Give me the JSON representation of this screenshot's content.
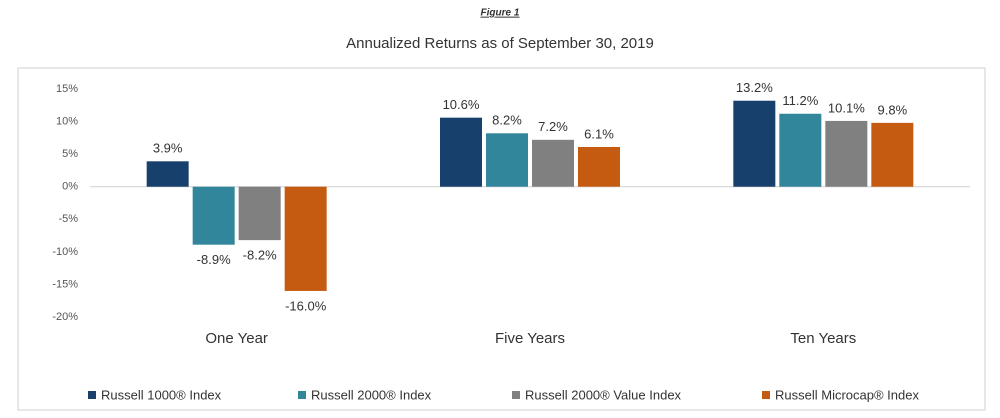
{
  "figure_label": "Figure 1",
  "chart_data": {
    "type": "bar",
    "title": "Annualized Returns as of September 30, 2019",
    "categories": [
      "One Year",
      "Five Years",
      "Ten Years"
    ],
    "series": [
      {
        "name": "Russell 1000® Index",
        "color": "#17406d",
        "values": [
          3.9,
          10.6,
          13.2
        ],
        "value_labels": [
          "3.9%",
          "10.6%",
          "13.2%"
        ]
      },
      {
        "name": "Russell 2000® Index",
        "color": "#31869b",
        "values": [
          -8.9,
          8.2,
          11.2
        ],
        "value_labels": [
          "-8.9%",
          "8.2%",
          "11.2%"
        ]
      },
      {
        "name": "Russell 2000® Value Index",
        "color": "#808080",
        "values": [
          -8.2,
          7.2,
          10.1
        ],
        "value_labels": [
          "-8.2%",
          "7.2%",
          "10.1%"
        ]
      },
      {
        "name": "Russell Microcap® Index",
        "color": "#c55a11",
        "values": [
          -16.0,
          6.1,
          9.8
        ],
        "value_labels": [
          "-16.0%",
          "6.1%",
          "9.8%"
        ]
      }
    ],
    "ylim": [
      -20,
      15
    ],
    "yticks": [
      {
        "value": 15,
        "label": "15%"
      },
      {
        "value": 10,
        "label": "10%"
      },
      {
        "value": 5,
        "label": "5%"
      },
      {
        "value": 0,
        "label": "0%"
      },
      {
        "value": -5,
        "label": "-5%"
      },
      {
        "value": -10,
        "label": "-10%"
      },
      {
        "value": -15,
        "label": "-15%"
      },
      {
        "value": -20,
        "label": "-20%"
      }
    ],
    "legend": "bottom"
  }
}
